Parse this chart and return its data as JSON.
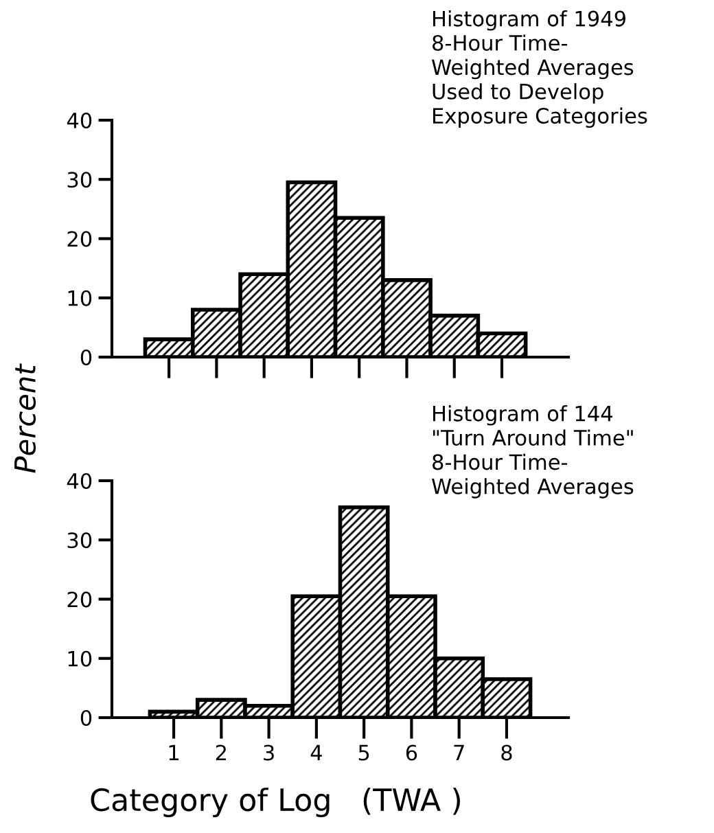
{
  "chart_data": [
    {
      "type": "histogram",
      "title": "Histogram of 1949\n8-Hour Time-\nWeighted Averages\nUsed to Develop\nExposure Categories",
      "ylabel": "Percent",
      "bins": [
        0.5,
        1.5,
        2.5,
        3.5,
        4.5,
        5.5,
        6.5,
        7.5,
        8.5
      ],
      "values": [
        3,
        8,
        14,
        29.5,
        23.5,
        13,
        7,
        4
      ],
      "color": "#000000",
      "xlim": [
        -0.2,
        9.4
      ],
      "xticks": [
        1,
        2,
        3,
        4,
        5,
        6,
        7,
        8
      ],
      "ylim": [
        0,
        40
      ],
      "yticks": [
        0,
        10,
        20,
        30,
        40
      ],
      "tick_labels": "y",
      "grid": false,
      "legend": false
    },
    {
      "type": "histogram",
      "title": "Histogram of 144\n\"Turn Around Time\"\n8-Hour Time-\nWeighted Averages",
      "xlabel": "Category of Log   (TWA )",
      "bins": [
        0.5,
        1.5,
        2.5,
        3.5,
        4.5,
        5.5,
        6.5,
        7.5,
        8.5
      ],
      "values": [
        1,
        3,
        2,
        20.5,
        35.5,
        20.5,
        10,
        6.5
      ],
      "color": "#000000",
      "xlim": [
        -0.3,
        9.3
      ],
      "xticks": [
        1,
        2,
        3,
        4,
        5,
        6,
        7,
        8
      ],
      "ylim": [
        0,
        40
      ],
      "yticks": [
        0,
        10,
        20,
        30,
        40
      ],
      "grid": false,
      "legend": false
    }
  ]
}
